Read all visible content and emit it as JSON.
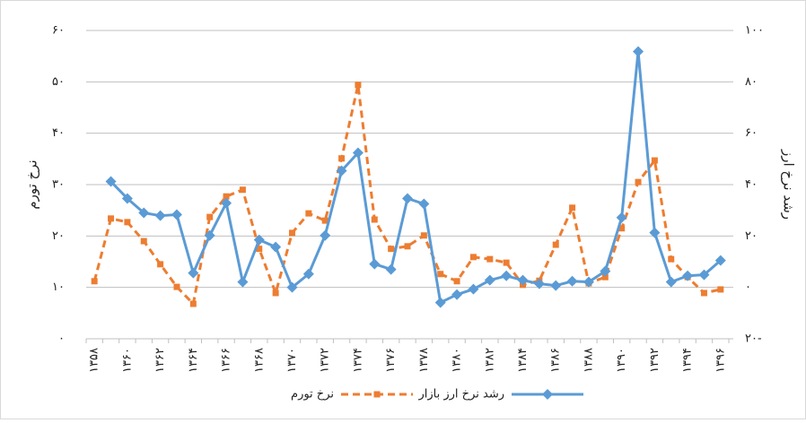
{
  "chart_data": {
    "type": "line",
    "y_label": "نرخ تورم",
    "y2_label": "رشد نرخ ارز",
    "categories": [
      "۱۳۵۸",
      null,
      "۱۳۶۰",
      null,
      "۱۳۶۲",
      null,
      "۱۳۶۴",
      null,
      "۱۳۶۶",
      null,
      "۱۳۶۸",
      null,
      "۱۳۷۰",
      null,
      "۱۳۷۲",
      null,
      "۱۳۷۴",
      null,
      "۱۳۷۶",
      null,
      "۱۳۷۸",
      null,
      "۱۳۸۰",
      null,
      "۱۳۸۲",
      null,
      "۱۳۸۴",
      null,
      "۱۳۸۶",
      null,
      "۱۳۸۸",
      null,
      "۱۳۹۰",
      null,
      "۱۳۹۲",
      null,
      "۱۳۹۴",
      null,
      "۱۳۹۶"
    ],
    "series": [
      {
        "name": "نرخ تورم",
        "color": "#ed7d31",
        "dashed": true,
        "marker": "square",
        "axis": "y",
        "values": [
          11.2,
          23.4,
          22.7,
          19,
          14.5,
          10.1,
          6.8,
          23.7,
          27.7,
          29,
          17.5,
          8.9,
          20.6,
          24.4,
          23,
          35.1,
          49.4,
          23.2,
          17.5,
          18,
          20.1,
          12.6,
          11.2,
          15.9,
          15.5,
          14.8,
          10.5,
          11.3,
          18.3,
          25.5,
          10.8,
          12,
          21.5,
          30.5,
          34.7,
          15.5,
          12,
          8.9,
          9.6
        ]
      },
      {
        "name": "رشد نرخ ارز بازار",
        "color": "#5b9bd5",
        "dashed": false,
        "marker": "diamond",
        "axis": "y2",
        "values": [
          null,
          41.2,
          34.6,
          29,
          27.9,
          28.3,
          5.6,
          20.2,
          32.8,
          2.1,
          18.5,
          15.7,
          0,
          5.2,
          20.2,
          45.4,
          52.4,
          9.1,
          7,
          34.6,
          32.5,
          -5.9,
          -2.8,
          -0.7,
          2.8,
          4.5,
          2.8,
          1.4,
          0.7,
          2.4,
          2.1,
          6.3,
          27.2,
          91.8,
          21.3,
          2.1,
          4.5,
          4.9,
          10.5
        ]
      }
    ],
    "ylim": [
      0,
      60
    ],
    "yticks": [
      {
        "value": 0,
        "label": "۰"
      },
      {
        "value": 10,
        "label": "۱۰"
      },
      {
        "value": 20,
        "label": "۲۰"
      },
      {
        "value": 30,
        "label": "۳۰"
      },
      {
        "value": 40,
        "label": "۴۰"
      },
      {
        "value": 50,
        "label": "۵۰"
      },
      {
        "value": 60,
        "label": "۶۰"
      }
    ],
    "y2lim": [
      -20,
      100
    ],
    "y2ticks": [
      {
        "value": -20,
        "label": "۲۰-"
      },
      {
        "value": 0,
        "label": "۰"
      },
      {
        "value": 20,
        "label": "۲۰"
      },
      {
        "value": 40,
        "label": "۴۰"
      },
      {
        "value": 60,
        "label": "۶۰"
      },
      {
        "value": 80,
        "label": "۸۰"
      },
      {
        "value": 100,
        "label": "۱۰۰"
      }
    ],
    "grid": true,
    "legend": "bottom"
  }
}
